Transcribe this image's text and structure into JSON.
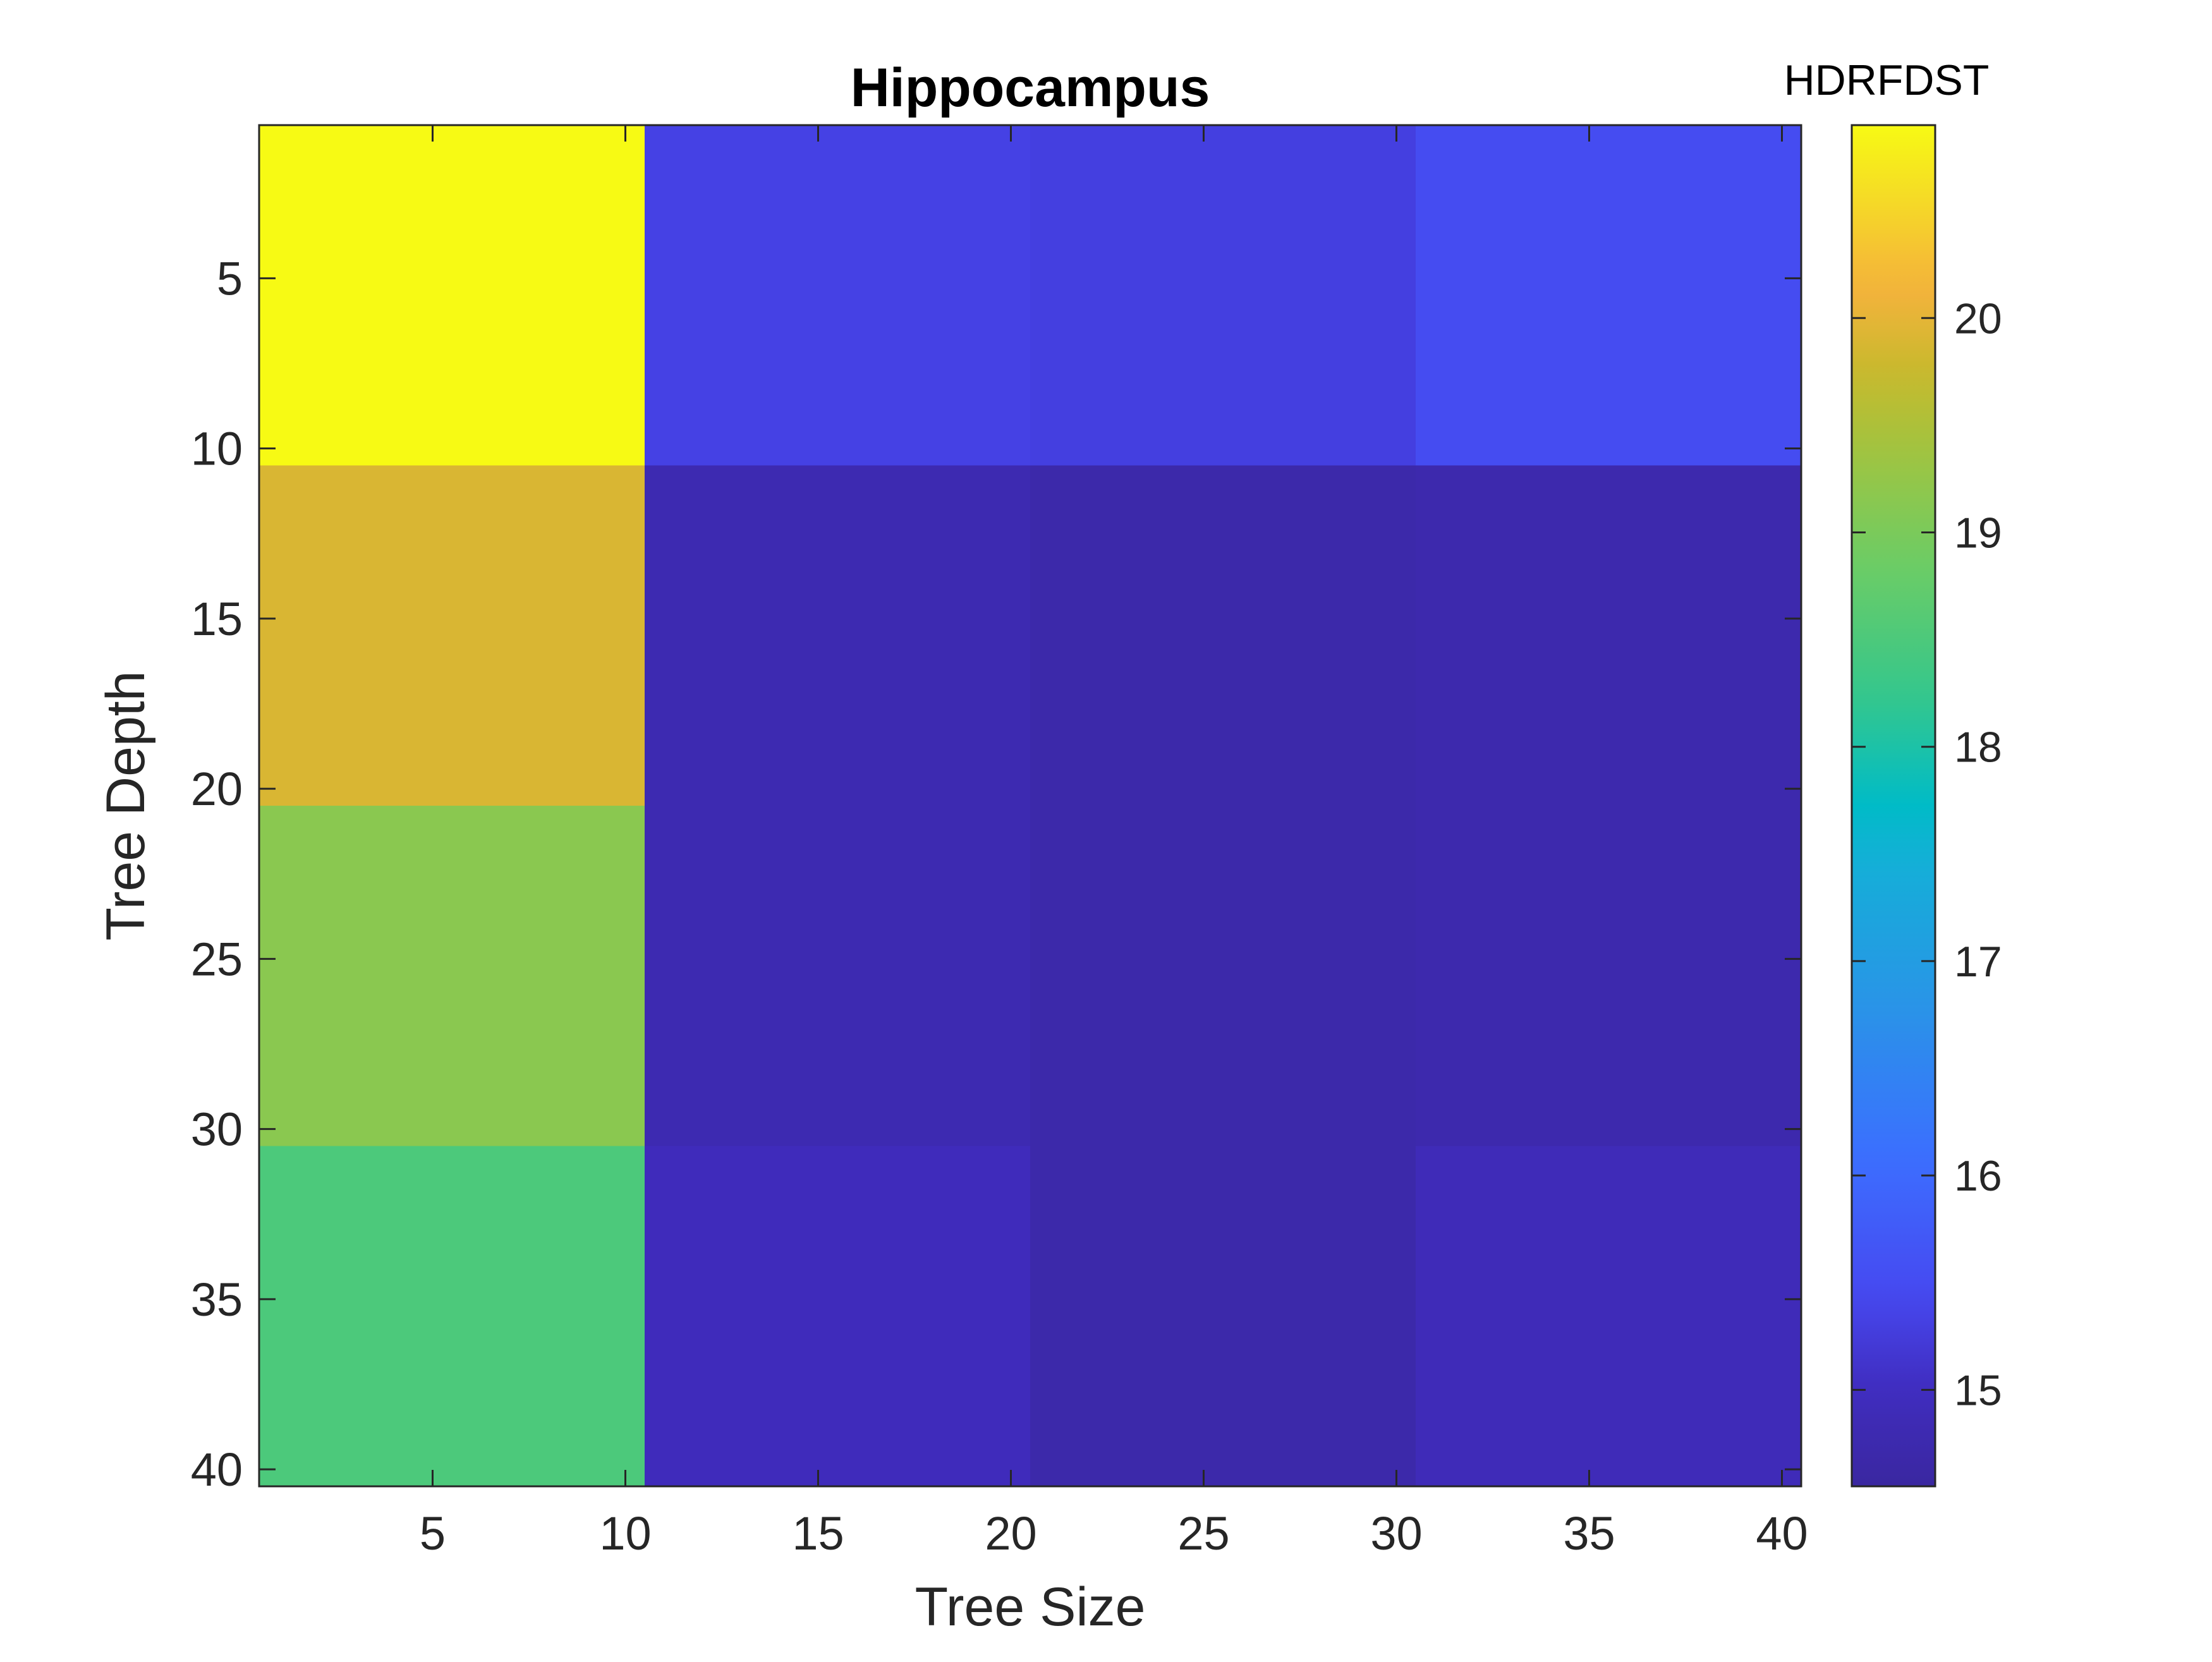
{
  "chart_data": {
    "type": "heatmap",
    "title": "Hippocampus",
    "xlabel": "Tree Size",
    "ylabel": "Tree Depth",
    "colorbar_label": "HDRFDST",
    "x_range": [
      0.5,
      40.5
    ],
    "y_range": [
      0.5,
      40.5
    ],
    "y_reversed": true,
    "x_ticks": [
      5,
      10,
      15,
      20,
      25,
      30,
      35,
      40
    ],
    "y_ticks": [
      5,
      10,
      15,
      20,
      25,
      30,
      35,
      40
    ],
    "colorbar_ticks": [
      15,
      16,
      17,
      18,
      19,
      20
    ],
    "colorbar_range": [
      14.55,
      20.9
    ],
    "colormap": "parula",
    "x_centers": [
      5.5,
      15.5,
      25.5,
      35.5
    ],
    "x_cells": [
      [
        0.5,
        10.5
      ],
      [
        10.5,
        20.5
      ],
      [
        20.5,
        30.5
      ],
      [
        30.5,
        40.5
      ]
    ],
    "y_cells": [
      [
        0.5,
        10.5
      ],
      [
        10.5,
        20.5
      ],
      [
        20.5,
        30.5
      ],
      [
        30.5,
        40.5
      ]
    ],
    "y_centers": [
      5.5,
      15.5,
      25.5,
      35.5
    ],
    "values": [
      [
        20.9,
        15.33,
        15.3,
        15.5
      ],
      [
        19.9,
        14.8,
        14.7,
        14.75
      ],
      [
        19.15,
        14.8,
        14.7,
        14.75
      ],
      [
        18.5,
        14.95,
        14.7,
        14.9
      ]
    ],
    "grid": false
  }
}
